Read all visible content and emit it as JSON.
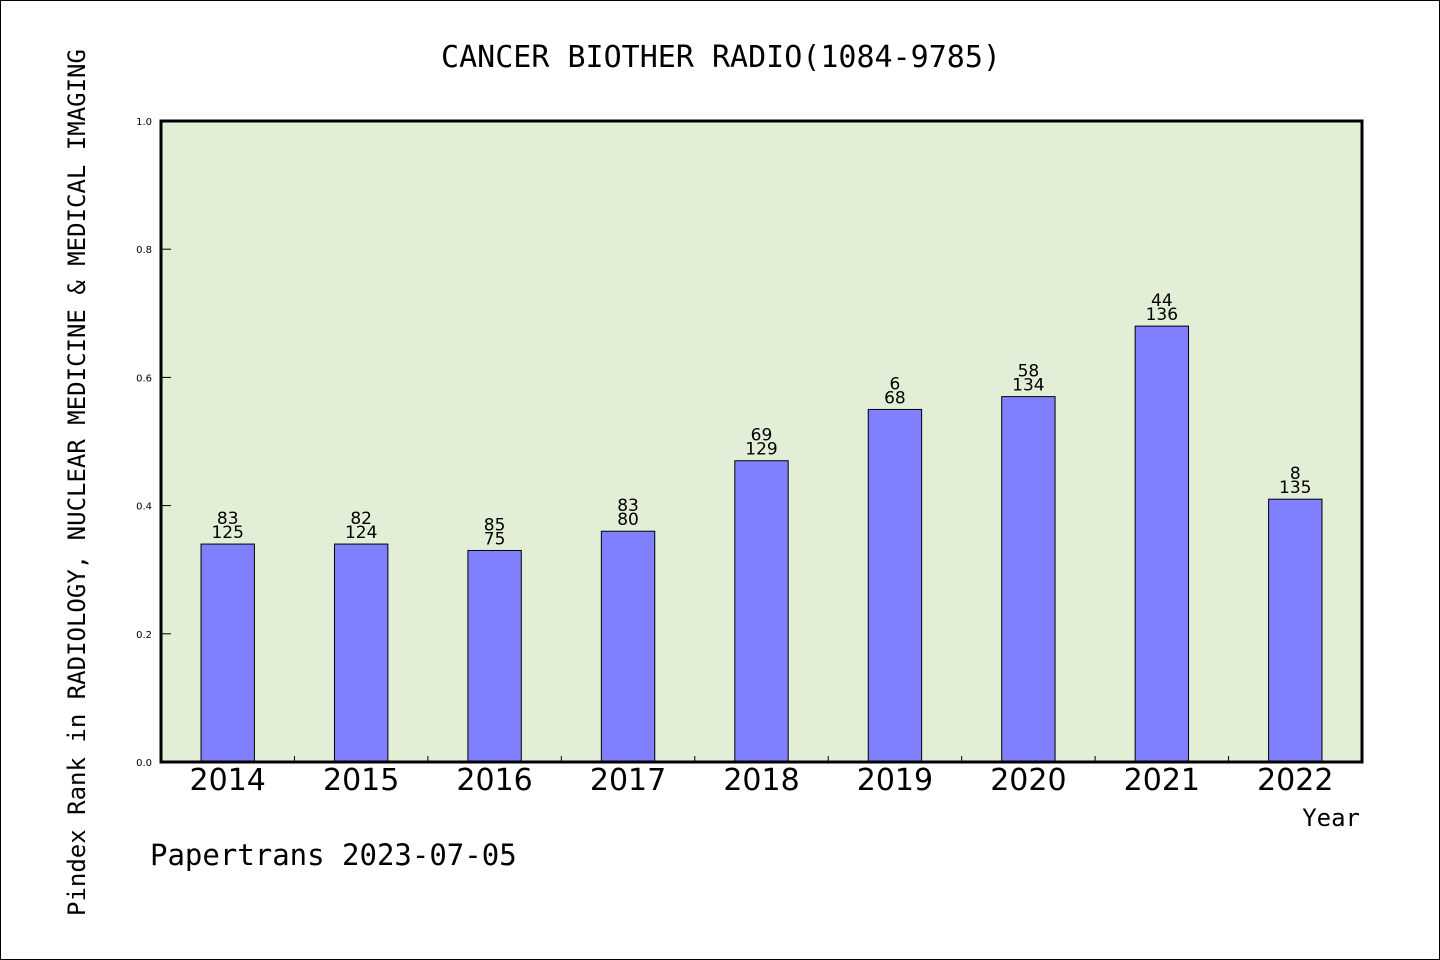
{
  "chart_data": {
    "type": "bar",
    "title": "CANCER BIOTHER RADIO(1084-9785)",
    "xlabel": "Year",
    "ylabel": "Pindex Rank in RADIOLOGY, NUCLEAR MEDICINE & MEDICAL IMAGING",
    "categories": [
      "2014",
      "2015",
      "2016",
      "2017",
      "2018",
      "2019",
      "2020",
      "2021",
      "2022"
    ],
    "values": [
      0.34,
      0.34,
      0.33,
      0.36,
      0.47,
      0.55,
      0.57,
      0.68,
      0.41
    ],
    "labels_top": [
      "83",
      "82",
      "85",
      "83",
      "69",
      "6",
      "58",
      "44",
      "8"
    ],
    "labels_bottom": [
      "125",
      "124",
      "75",
      "80",
      "129",
      "68",
      "134",
      "136",
      "135"
    ],
    "ylim": [
      0,
      1.0
    ],
    "yticks": [
      "0.0",
      "0.2",
      "0.4",
      "0.6",
      "0.8",
      "1.0"
    ],
    "grid": false,
    "plot_background": "#e2efd6",
    "bar_color": "#8080ff",
    "footer": "Papertrans 2023-07-05"
  }
}
